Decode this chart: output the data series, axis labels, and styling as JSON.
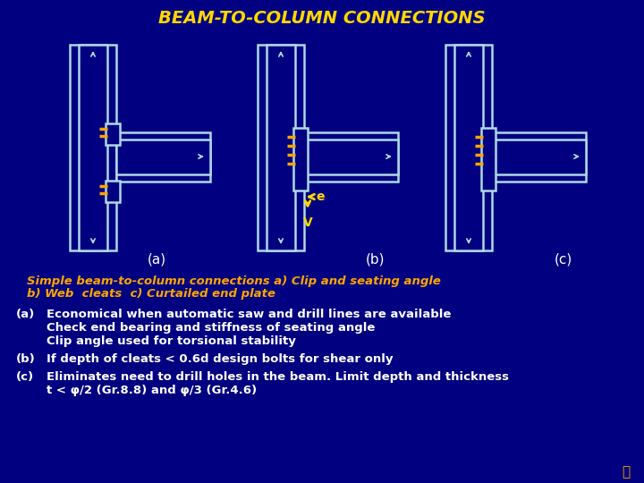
{
  "title": "BEAM-TO-COLUMN CONNECTIONS",
  "bg_color": "#000080",
  "title_color": "#FFD700",
  "line_color": "#ADD8E6",
  "bolt_color": "#FFA500",
  "label_color": "#FFFFFF",
  "caption_color": "#FFA500",
  "text_color": "#FFFFFF",
  "caption_line1": "Simple beam-to-column connections a) Clip and seating angle",
  "caption_line2": "b) Web  cleats  c) Curtailed end plate",
  "bullet_a_label": "(a)",
  "bullet_a_text": "Economical when automatic saw and drill lines are available",
  "bullet_a_text2": "Check end bearing and stiffness of seating angle",
  "bullet_a_text3": "Clip angle used for torsional stability",
  "bullet_b_label": "(b)",
  "bullet_b_text": "If depth of cleats < 0.6d design bolts for shear only",
  "bullet_c_label": "(c)",
  "bullet_c_text": "Eliminates need to drill holes in the beam. Limit depth and thickness",
  "bullet_c_text2": "t < φ/2 (Gr.8.8) and φ/3 (Gr.4.6)"
}
